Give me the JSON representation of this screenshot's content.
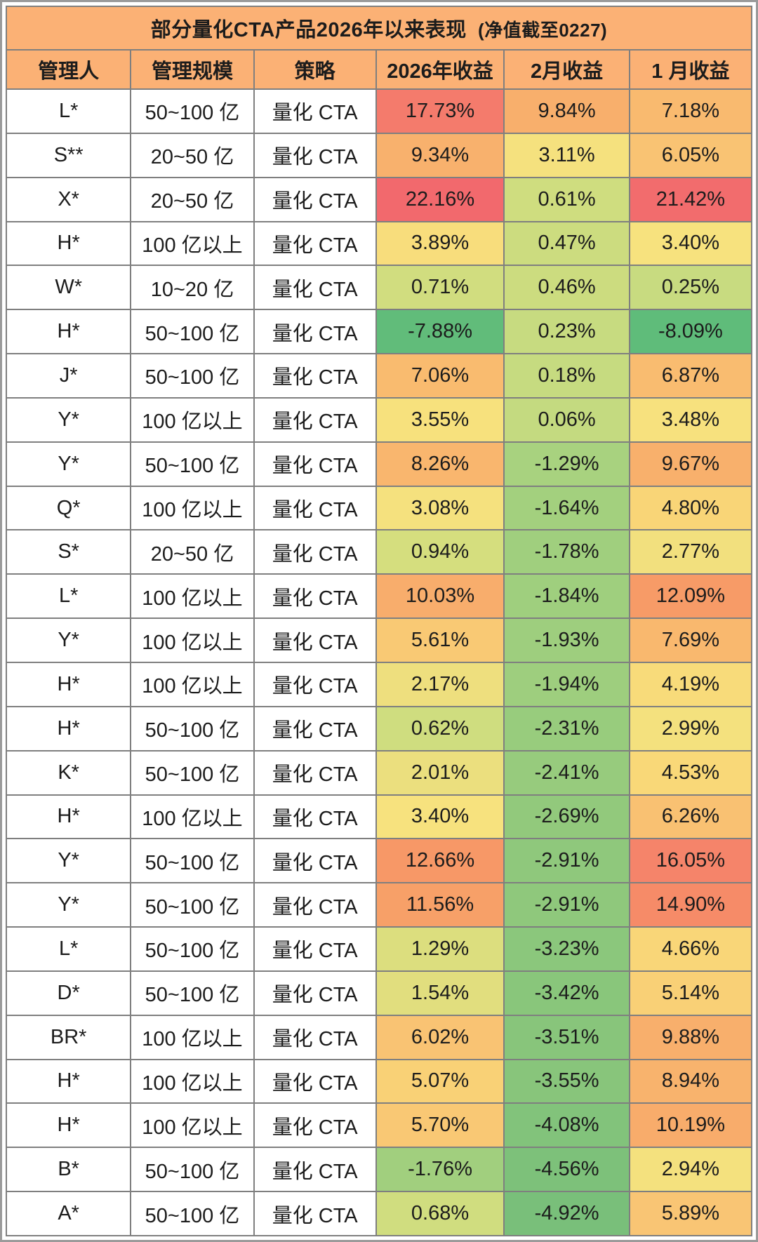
{
  "title": {
    "main": "部分量化CTA产品2026年以来表现",
    "note": "(净值截至0227)"
  },
  "colors": {
    "banner_bg": "#FBB175",
    "header_bg": "#FBB175",
    "grid_line": "#7F7F7F",
    "text": "#1C1C1C"
  },
  "chart_data": {
    "type": "table",
    "title": "部分量化CTA产品2026年以来表现",
    "subtitle": "(净值截至0227)",
    "columns": [
      "管理人",
      "管理规模",
      "策略",
      "2026年收益",
      "2月收益",
      "1 月收益"
    ],
    "value_format": "two_decimal_percent",
    "rows": [
      [
        "L*",
        "50~100 亿",
        "量化 CTA",
        17.73,
        9.84,
        7.18
      ],
      [
        "S**",
        "20~50 亿",
        "量化 CTA",
        9.34,
        3.11,
        6.05
      ],
      [
        "X*",
        "20~50 亿",
        "量化 CTA",
        22.16,
        0.61,
        21.42
      ],
      [
        "H*",
        "100 亿以上",
        "量化 CTA",
        3.89,
        0.47,
        3.4
      ],
      [
        "W*",
        "10~20 亿",
        "量化 CTA",
        0.71,
        0.46,
        0.25
      ],
      [
        "H*",
        "50~100 亿",
        "量化 CTA",
        -7.88,
        0.23,
        -8.09
      ],
      [
        "J*",
        "50~100 亿",
        "量化 CTA",
        7.06,
        0.18,
        6.87
      ],
      [
        "Y*",
        "100 亿以上",
        "量化 CTA",
        3.55,
        0.06,
        3.48
      ],
      [
        "Y*",
        "50~100 亿",
        "量化 CTA",
        8.26,
        -1.29,
        9.67
      ],
      [
        "Q*",
        "100 亿以上",
        "量化 CTA",
        3.08,
        -1.64,
        4.8
      ],
      [
        "S*",
        "20~50 亿",
        "量化 CTA",
        0.94,
        -1.78,
        2.77
      ],
      [
        "L*",
        "100 亿以上",
        "量化 CTA",
        10.03,
        -1.84,
        12.09
      ],
      [
        "Y*",
        "100 亿以上",
        "量化 CTA",
        5.61,
        -1.93,
        7.69
      ],
      [
        "H*",
        "100 亿以上",
        "量化 CTA",
        2.17,
        -1.94,
        4.19
      ],
      [
        "H*",
        "50~100 亿",
        "量化 CTA",
        0.62,
        -2.31,
        2.99
      ],
      [
        "K*",
        "50~100 亿",
        "量化 CTA",
        2.01,
        -2.41,
        4.53
      ],
      [
        "H*",
        "100 亿以上",
        "量化 CTA",
        3.4,
        -2.69,
        6.26
      ],
      [
        "Y*",
        "50~100 亿",
        "量化 CTA",
        12.66,
        -2.91,
        16.05
      ],
      [
        "Y*",
        "50~100 亿",
        "量化 CTA",
        11.56,
        -2.91,
        14.9
      ],
      [
        "L*",
        "50~100 亿",
        "量化 CTA",
        1.29,
        -3.23,
        4.66
      ],
      [
        "D*",
        "50~100 亿",
        "量化 CTA",
        1.54,
        -3.42,
        5.14
      ],
      [
        "BR*",
        "100 亿以上",
        "量化 CTA",
        6.02,
        -3.51,
        9.88
      ],
      [
        "H*",
        "100 亿以上",
        "量化 CTA",
        5.07,
        -3.55,
        8.94
      ],
      [
        "H*",
        "100 亿以上",
        "量化 CTA",
        5.7,
        -4.08,
        10.19
      ],
      [
        "B*",
        "50~100 亿",
        "量化 CTA",
        -1.76,
        -4.56,
        2.94
      ],
      [
        "A*",
        "50~100 亿",
        "量化 CTA",
        0.68,
        -4.92,
        5.89
      ]
    ],
    "color_scale": {
      "description": "green-yellow-red heat scale applied to return cells",
      "stops": [
        [
          -8.09,
          "#5FBC7A"
        ],
        [
          -4.92,
          "#79BF7A"
        ],
        [
          -2.91,
          "#8FC87C"
        ],
        [
          -1.93,
          "#9ECE7E"
        ],
        [
          -1.29,
          "#A8D27F"
        ],
        [
          0.06,
          "#C4DA80"
        ],
        [
          0.94,
          "#D5DE7E"
        ],
        [
          2.17,
          "#EEDF7E"
        ],
        [
          3.4,
          "#F7E27E"
        ],
        [
          4.8,
          "#F9D577"
        ],
        [
          6.05,
          "#F9C373"
        ],
        [
          7.18,
          "#F9BA6F"
        ],
        [
          9.84,
          "#F8AF6C"
        ],
        [
          12.09,
          "#F79B67"
        ],
        [
          14.9,
          "#F68B68"
        ],
        [
          17.73,
          "#F47B6C"
        ],
        [
          22.16,
          "#F2696D"
        ]
      ]
    }
  }
}
